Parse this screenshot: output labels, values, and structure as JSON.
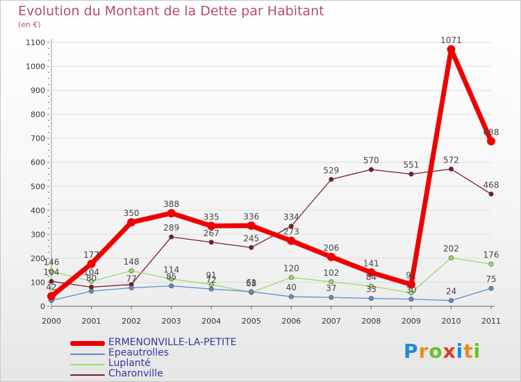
{
  "chart_data": {
    "type": "line",
    "title": "Evolution du Montant de la Dette par Habitant",
    "subtitle": "(en €)",
    "categories": [
      "2000",
      "2001",
      "2002",
      "2003",
      "2004",
      "2005",
      "2006",
      "2007",
      "2008",
      "2009",
      "2010",
      "2011"
    ],
    "ylim": [
      0,
      1100
    ],
    "yticks": [
      0,
      100,
      200,
      300,
      400,
      500,
      600,
      700,
      800,
      900,
      1000,
      1100
    ],
    "series": [
      {
        "name": "Charonville",
        "color": "#7a1c24",
        "values": [
          104,
          80,
          91,
          289,
          267,
          245,
          334,
          529,
          570,
          551,
          572,
          468
        ],
        "labels": [
          "104",
          "80",
          "",
          "289",
          "267",
          "245",
          "334",
          "529",
          "570",
          "551",
          "572",
          "468"
        ]
      },
      {
        "name": "Luplanté",
        "color": "#99dd66",
        "values": [
          146,
          104,
          148,
          114,
          91,
          58,
          120,
          102,
          84,
          56,
          202,
          176
        ],
        "labels": [
          "146",
          "104",
          "148",
          "114",
          "91",
          "58",
          "120",
          "102",
          "84",
          "",
          "202",
          "176"
        ]
      },
      {
        "name": "Epeautrolles",
        "color": "#5a8fcf",
        "values": [
          24,
          63,
          77,
          85,
          72,
          61,
          40,
          37,
          33,
          30,
          24,
          75
        ],
        "labels": [
          "",
          "",
          "77",
          "85",
          "72",
          "61",
          "40",
          "37",
          "33",
          "30",
          "24",
          "75"
        ]
      },
      {
        "name": "ERMENONVILLE-LA-PETITE",
        "color": "#ee0000",
        "values": [
          42,
          177,
          350,
          388,
          335,
          336,
          273,
          206,
          141,
          91,
          1071,
          688
        ],
        "labels": [
          "42",
          "177",
          "350",
          "388",
          "335",
          "336",
          "273",
          "206",
          "141",
          "91",
          "1071",
          "688"
        ]
      }
    ],
    "legend_order": [
      "ERMENONVILLE-LA-PETITE",
      "Epeautrolles",
      "Luplanté",
      "Charonville"
    ]
  },
  "brand": {
    "letters": [
      "P",
      "r",
      "o",
      "x",
      "i",
      "t",
      "i"
    ],
    "colors": [
      "#1e88d8",
      "#f08a1c",
      "#6cbf2a",
      "#e8352a",
      "#1e88d8",
      "#f08a1c",
      "#6cbf2a"
    ]
  }
}
